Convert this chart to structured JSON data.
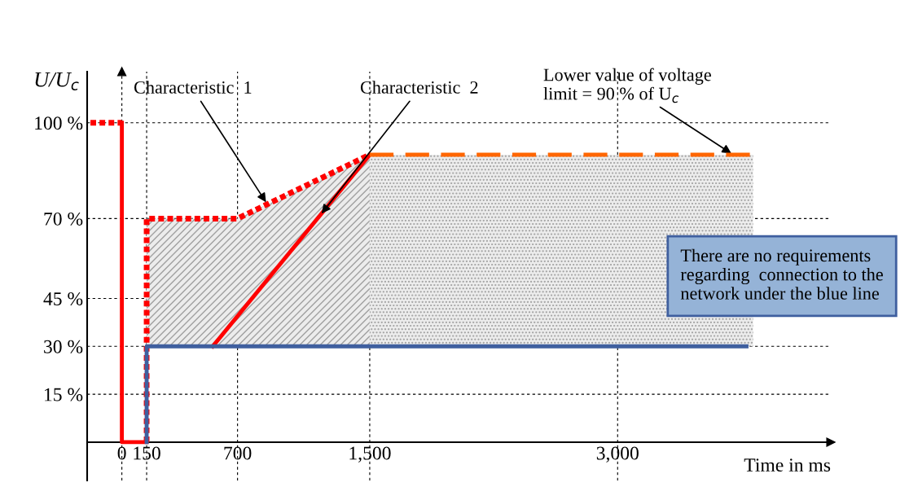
{
  "chart_data": {
    "type": "line",
    "ylabel": "U/U$_{c}$",
    "xlabel": "Time in ms",
    "xlim": [
      -210,
      4290
    ],
    "ylim": [
      -12,
      116
    ],
    "xticks": [
      0,
      150,
      700,
      {
        "value": 1500,
        "label": "1,500"
      },
      {
        "value": 3000,
        "label": "3,000"
      }
    ],
    "yticks": [
      {
        "value": 15,
        "label": "15 %"
      },
      {
        "value": 30,
        "label": "30 %"
      },
      {
        "value": 45,
        "label": "45 %"
      },
      {
        "value": 70,
        "label": "70 %"
      },
      {
        "value": 100,
        "label": "100 %"
      }
    ],
    "grid": true,
    "series": [
      {
        "color": "#ff0000",
        "x": [
          -190,
          0
        ],
        "values": [
          100,
          100
        ],
        "line_style": "dotted"
      },
      {
        "color": "#ff0000",
        "x": [
          0,
          0,
          150
        ],
        "values": [
          100,
          0,
          0
        ],
        "line_style": "solid"
      },
      {
        "color": "#ff0000",
        "x": [
          150,
          150,
          700,
          1500
        ],
        "values": [
          0,
          70,
          70,
          90
        ],
        "line_style": "dotted",
        "lower": [
          null,
          30,
          30,
          30
        ],
        "upper": [
          null,
          70,
          70,
          90
        ]
      },
      {
        "color": "#ff0000",
        "x": [
          550,
          1500
        ],
        "values": [
          30,
          90
        ],
        "line_style": "solid"
      },
      {
        "color": "#3f5f9f",
        "x": [
          150,
          150,
          3780
        ],
        "values": [
          0,
          30,
          30
        ],
        "line_style": "solid"
      },
      {
        "color": "#ff6600",
        "x": [
          1500,
          3820
        ],
        "values": [
          90,
          90
        ],
        "line_style": "dashed",
        "lower": [
          30,
          30
        ],
        "upper": [
          90,
          90
        ]
      }
    ],
    "annotations": [
      {
        "text": "Characteristic  1",
        "x": 880,
        "y": 74.5
      },
      {
        "text": "Characteristic  2",
        "x": 1200,
        "y": 71
      },
      {
        "text": "Lower value of voltage\nlimit = 90 % of U$_{c}$",
        "x": 3700,
        "y": 90
      },
      "There are no requirements\nregarding  connection to the\nnetwork under the blue line"
    ]
  }
}
